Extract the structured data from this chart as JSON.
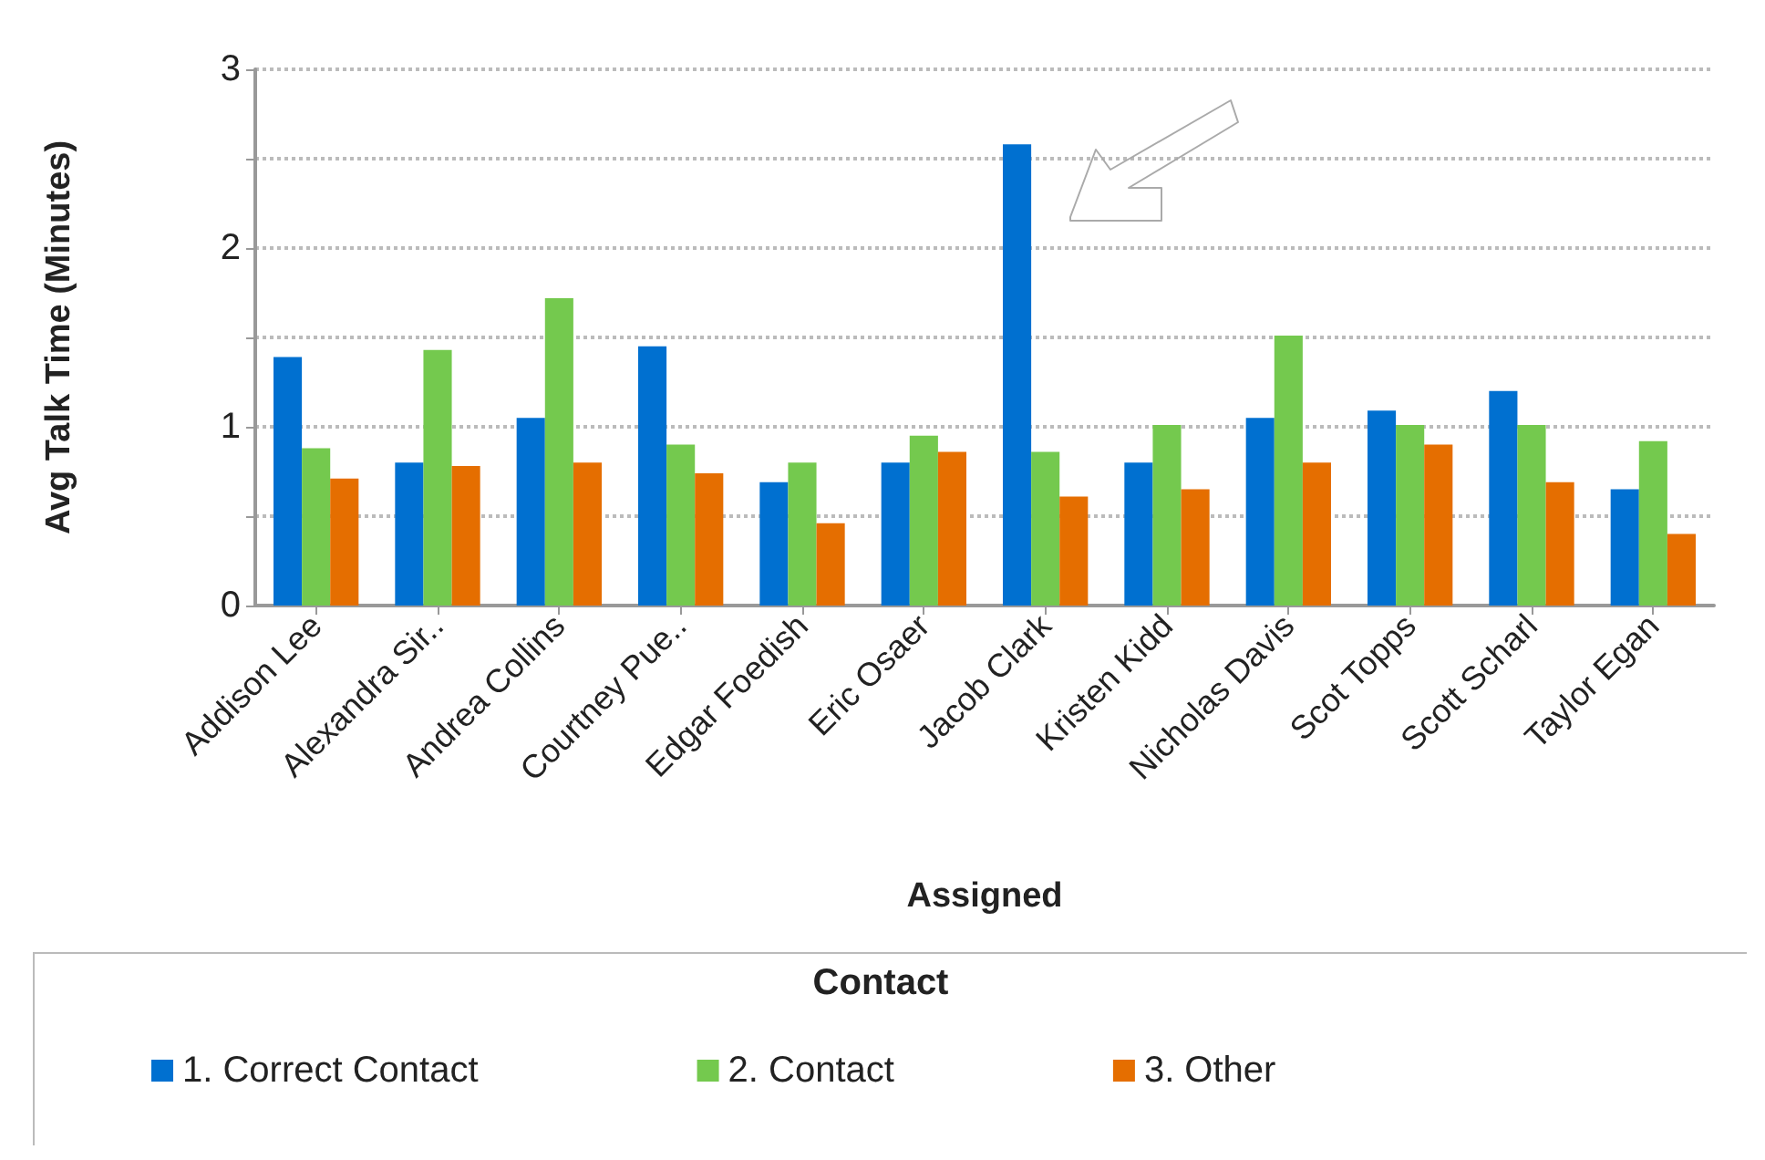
{
  "chart_data": {
    "type": "bar",
    "xlabel": "Assigned",
    "ylabel": "Avg Talk Time (Minutes)",
    "legend_title": "Contact",
    "categories": [
      "Addison Lee",
      "Alexandra Sir..",
      "Andrea Collins",
      "Courtney Pue..",
      "Edgar Foedish",
      "Eric Osaer",
      "Jacob Clark",
      "Kristen Kidd",
      "Nicholas Davis",
      "Scot Topps",
      "Scott Scharl",
      "Taylor Egan"
    ],
    "series": [
      {
        "name": "1. Correct Contact",
        "color": "#0070d0",
        "values": [
          1.39,
          0.8,
          1.05,
          1.45,
          0.69,
          0.8,
          2.58,
          0.8,
          1.05,
          1.09,
          1.2,
          0.65
        ]
      },
      {
        "name": "2. Contact",
        "color": "#74c94e",
        "values": [
          0.88,
          1.43,
          1.72,
          0.9,
          0.8,
          0.95,
          0.86,
          1.01,
          1.51,
          1.01,
          1.01,
          0.92
        ]
      },
      {
        "name": "3. Other",
        "color": "#e56e00",
        "values": [
          0.71,
          0.78,
          0.8,
          0.74,
          0.46,
          0.86,
          0.61,
          0.65,
          0.8,
          0.9,
          0.69,
          0.4
        ]
      }
    ],
    "ylim": [
      0,
      3
    ],
    "yticks": [
      0,
      {
        "value": 0.5,
        "label": null
      },
      1,
      {
        "value": 1.5,
        "label": null
      },
      2,
      {
        "value": 2.5,
        "label": null
      },
      3
    ],
    "grid": "y",
    "legend": "bottom"
  }
}
